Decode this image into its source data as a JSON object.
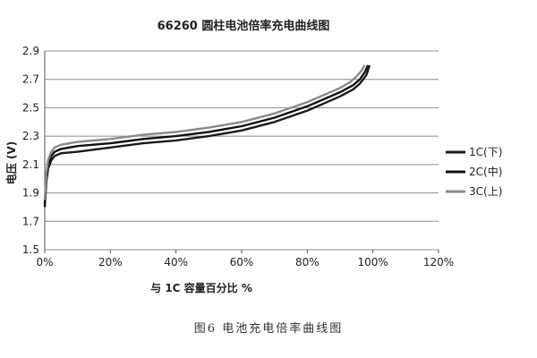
{
  "chart_data": {
    "type": "line",
    "title": "66260 圆柱电池倍率充电曲线图",
    "xlabel": "与 1C 容量百分比 %",
    "ylabel": "电压 (V)",
    "xlim": [
      0,
      120
    ],
    "ylim": [
      1.5,
      2.9
    ],
    "x_ticks": [
      0,
      20,
      40,
      60,
      80,
      100,
      120
    ],
    "x_tick_labels": [
      "0%",
      "20%",
      "40%",
      "60%",
      "80%",
      "100%",
      "120%"
    ],
    "y_ticks": [
      1.5,
      1.7,
      1.9,
      2.1,
      2.3,
      2.5,
      2.7,
      2.9
    ],
    "y_tick_labels": [
      "1.5",
      "1.7",
      "1.9",
      "2.1",
      "2.3",
      "2.5",
      "2.7",
      "2.9"
    ],
    "grid": "horizontal",
    "legend_position": "right",
    "series": [
      {
        "name": "1C(下)",
        "color": "#1a1a1a",
        "x": [
          0,
          0.5,
          1,
          2,
          3,
          5,
          10,
          20,
          30,
          40,
          50,
          60,
          70,
          80,
          85,
          90,
          94,
          96,
          98,
          99
        ],
        "y": [
          1.8,
          1.98,
          2.07,
          2.13,
          2.16,
          2.18,
          2.19,
          2.22,
          2.25,
          2.27,
          2.3,
          2.34,
          2.4,
          2.48,
          2.53,
          2.58,
          2.63,
          2.67,
          2.73,
          2.8
        ]
      },
      {
        "name": "2C(中)",
        "color": "#111111",
        "x": [
          0,
          0.5,
          1,
          2,
          3,
          5,
          10,
          20,
          30,
          40,
          50,
          60,
          70,
          80,
          85,
          90,
          94,
          96,
          97.5,
          98.5
        ],
        "y": [
          1.82,
          2.01,
          2.1,
          2.16,
          2.19,
          2.21,
          2.23,
          2.25,
          2.28,
          2.3,
          2.33,
          2.37,
          2.43,
          2.51,
          2.56,
          2.61,
          2.66,
          2.7,
          2.75,
          2.8
        ]
      },
      {
        "name": "3C(上)",
        "color": "#8a8a8a",
        "x": [
          0,
          0.5,
          1,
          2,
          3,
          5,
          10,
          20,
          30,
          40,
          50,
          60,
          70,
          80,
          85,
          90,
          93,
          95,
          96.5,
          97.5
        ],
        "y": [
          1.85,
          2.04,
          2.13,
          2.19,
          2.22,
          2.24,
          2.26,
          2.28,
          2.31,
          2.33,
          2.36,
          2.4,
          2.46,
          2.54,
          2.59,
          2.64,
          2.68,
          2.72,
          2.76,
          2.8
        ]
      }
    ]
  },
  "caption": "图6   电池充电倍率曲线图"
}
